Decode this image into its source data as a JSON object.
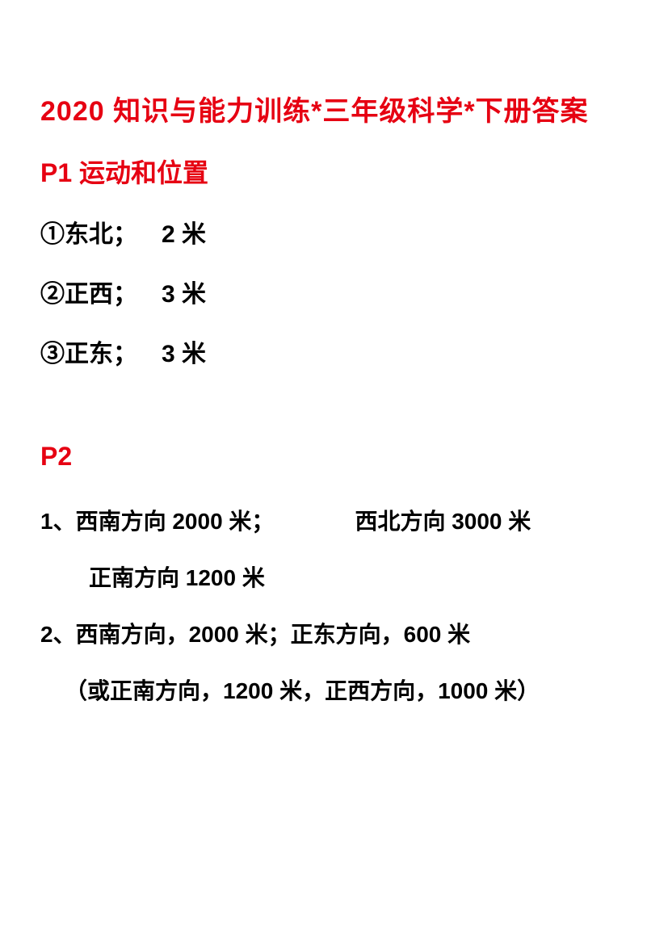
{
  "document": {
    "title": "2020 知识与能力训练*三年级科学*下册答案",
    "colors": {
      "heading": "#e60012",
      "text": "#000000",
      "background": "#ffffff"
    },
    "sections": [
      {
        "heading": "P1 运动和位置",
        "answers": [
          {
            "marker": "①",
            "direction": "东北；",
            "distance": "2 米"
          },
          {
            "marker": "②",
            "direction": "正西；",
            "distance": "3 米"
          },
          {
            "marker": "③",
            "direction": "正东；",
            "distance": "3 米"
          }
        ]
      },
      {
        "heading": "P2",
        "items": [
          {
            "number": "1、",
            "parts": [
              {
                "text1": "西南方向 2000 米；",
                "text2": "西北方向 3000 米"
              },
              {
                "text1": "正南方向 1200 米"
              }
            ]
          },
          {
            "number": "2、",
            "line1": "西南方向，2000 米；正东方向，600 米",
            "line2": "（或正南方向，1200 米，正西方向，1000 米）"
          }
        ]
      }
    ]
  }
}
